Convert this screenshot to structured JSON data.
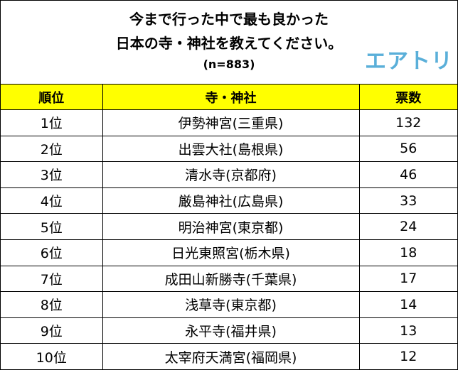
{
  "header": {
    "title_line1": "今まで行った中で最も良かった",
    "title_line2": "日本の寺・神社を教えてください。",
    "sample_size": "(n=883)",
    "logo_text": "エアトリ",
    "logo_color": "#5aafd9"
  },
  "table": {
    "header_bg": "#ffff00",
    "columns": [
      "順位",
      "寺・神社",
      "票数"
    ]
  },
  "chart_data": {
    "type": "table",
    "title": "今まで行った中で最も良かった日本の寺・神社を教えてください。",
    "subtitle": "(n=883)",
    "columns": [
      "順位",
      "寺・神社",
      "票数"
    ],
    "rows": [
      {
        "rank": "1位",
        "name": "伊勢神宮(三重県)",
        "votes": 132
      },
      {
        "rank": "2位",
        "name": "出雲大社(島根県)",
        "votes": 56
      },
      {
        "rank": "3位",
        "name": "清水寺(京都府)",
        "votes": 46
      },
      {
        "rank": "4位",
        "name": "厳島神社(広島県)",
        "votes": 33
      },
      {
        "rank": "5位",
        "name": "明治神宮(東京都)",
        "votes": 24
      },
      {
        "rank": "6位",
        "name": "日光東照宮(栃木県)",
        "votes": 18
      },
      {
        "rank": "7位",
        "name": "成田山新勝寺(千葉県)",
        "votes": 17
      },
      {
        "rank": "8位",
        "name": "浅草寺(東京都)",
        "votes": 14
      },
      {
        "rank": "9位",
        "name": "永平寺(福井県)",
        "votes": 13
      },
      {
        "rank": "10位",
        "name": "太宰府天満宮(福岡県)",
        "votes": 12
      }
    ]
  }
}
